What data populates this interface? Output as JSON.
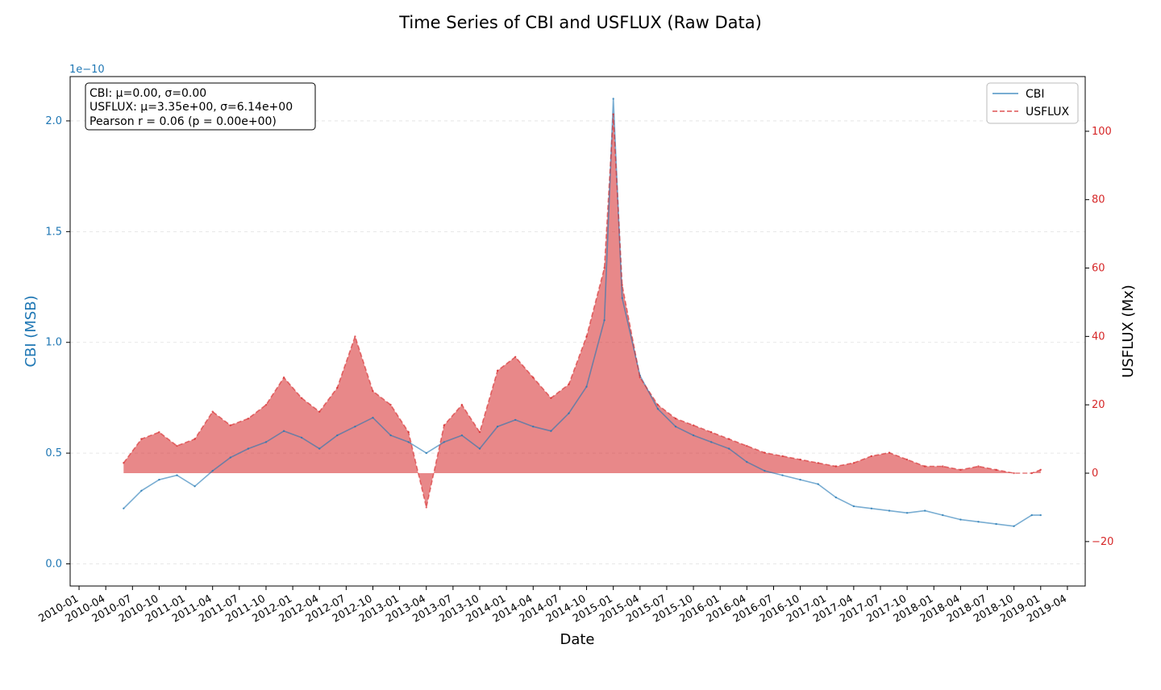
{
  "chart_data": {
    "type": "line",
    "title": "Time Series of CBI and USFLUX (Raw Data)",
    "xlabel": "Date",
    "ylabel_left": "CBI (MSB)",
    "ylabel_right": "USFLUX (Mx)",
    "left_axis_exponent": "1e−10",
    "x_ticks": [
      "2010-01",
      "2010-04",
      "2010-07",
      "2010-10",
      "2011-01",
      "2011-04",
      "2011-07",
      "2011-10",
      "2012-01",
      "2012-04",
      "2012-07",
      "2012-10",
      "2013-01",
      "2013-04",
      "2013-07",
      "2013-10",
      "2014-01",
      "2014-04",
      "2014-07",
      "2014-10",
      "2015-01",
      "2015-04",
      "2015-07",
      "2015-10",
      "2016-01",
      "2016-04",
      "2016-07",
      "2016-10",
      "2017-01",
      "2017-04",
      "2017-07",
      "2017-10",
      "2018-01",
      "2018-04",
      "2018-07",
      "2018-10",
      "2019-01",
      "2019-04"
    ],
    "x_range": [
      "2009-12",
      "2019-06"
    ],
    "left_ticks": [
      "0.0",
      "0.5",
      "1.0",
      "1.5",
      "2.0"
    ],
    "left_ylim": [
      -0.1,
      2.2
    ],
    "right_ticks": [
      "−20",
      "0",
      "20",
      "40",
      "60",
      "80",
      "100"
    ],
    "right_ylim": [
      -33,
      116
    ],
    "grid": "horizontal dashed",
    "legend_position": "top-right",
    "stats": [
      "CBI: μ=0.00, σ=0.00",
      "USFLUX: μ=3.35e+00, σ=6.14e+00",
      "Pearson r = 0.06 (p = 0.00e+00)"
    ],
    "series": [
      {
        "name": "CBI",
        "axis": "left",
        "color": "#1f77b4",
        "style": "solid",
        "x": [
          "2010-06",
          "2010-08",
          "2010-10",
          "2010-12",
          "2011-02",
          "2011-04",
          "2011-06",
          "2011-08",
          "2011-10",
          "2011-12",
          "2012-02",
          "2012-04",
          "2012-06",
          "2012-08",
          "2012-10",
          "2012-12",
          "2013-02",
          "2013-04",
          "2013-06",
          "2013-08",
          "2013-10",
          "2013-12",
          "2014-02",
          "2014-04",
          "2014-06",
          "2014-08",
          "2014-10",
          "2014-12",
          "2015-01",
          "2015-02",
          "2015-04",
          "2015-06",
          "2015-08",
          "2015-10",
          "2015-12",
          "2016-02",
          "2016-04",
          "2016-06",
          "2016-08",
          "2016-10",
          "2016-12",
          "2017-02",
          "2017-04",
          "2017-06",
          "2017-08",
          "2017-10",
          "2017-12",
          "2018-02",
          "2018-04",
          "2018-06",
          "2018-08",
          "2018-10",
          "2018-12",
          "2019-01"
        ],
        "values": [
          0.25,
          0.33,
          0.38,
          0.4,
          0.35,
          0.42,
          0.48,
          0.52,
          0.55,
          0.6,
          0.57,
          0.52,
          0.58,
          0.62,
          0.66,
          0.58,
          0.55,
          0.5,
          0.55,
          0.58,
          0.52,
          0.62,
          0.65,
          0.62,
          0.6,
          0.68,
          0.8,
          1.1,
          2.1,
          1.2,
          0.85,
          0.7,
          0.62,
          0.58,
          0.55,
          0.52,
          0.46,
          0.42,
          0.4,
          0.38,
          0.36,
          0.3,
          0.26,
          0.25,
          0.24,
          0.23,
          0.24,
          0.22,
          0.2,
          0.19,
          0.18,
          0.17,
          0.22,
          0.22
        ]
      },
      {
        "name": "USFLUX",
        "axis": "right",
        "color": "#d62728",
        "style": "dashed",
        "x": [
          "2010-06",
          "2010-08",
          "2010-10",
          "2010-12",
          "2011-02",
          "2011-04",
          "2011-06",
          "2011-08",
          "2011-10",
          "2011-12",
          "2012-02",
          "2012-04",
          "2012-06",
          "2012-08",
          "2012-10",
          "2012-12",
          "2013-02",
          "2013-04",
          "2013-06",
          "2013-08",
          "2013-10",
          "2013-12",
          "2014-02",
          "2014-04",
          "2014-06",
          "2014-08",
          "2014-10",
          "2014-12",
          "2015-01",
          "2015-02",
          "2015-04",
          "2015-06",
          "2015-08",
          "2015-10",
          "2015-12",
          "2016-02",
          "2016-04",
          "2016-06",
          "2016-08",
          "2016-10",
          "2016-12",
          "2017-02",
          "2017-04",
          "2017-06",
          "2017-08",
          "2017-10",
          "2017-12",
          "2018-02",
          "2018-04",
          "2018-06",
          "2018-08",
          "2018-10",
          "2018-12",
          "2019-01"
        ],
        "values": [
          3,
          10,
          12,
          8,
          10,
          18,
          14,
          16,
          20,
          28,
          22,
          18,
          25,
          40,
          24,
          20,
          12,
          -10,
          14,
          20,
          12,
          30,
          34,
          28,
          22,
          26,
          40,
          60,
          105,
          55,
          28,
          20,
          16,
          14,
          12,
          10,
          8,
          6,
          5,
          4,
          3,
          2,
          3,
          5,
          6,
          4,
          2,
          2,
          1,
          2,
          1,
          0,
          0,
          1
        ]
      }
    ]
  }
}
